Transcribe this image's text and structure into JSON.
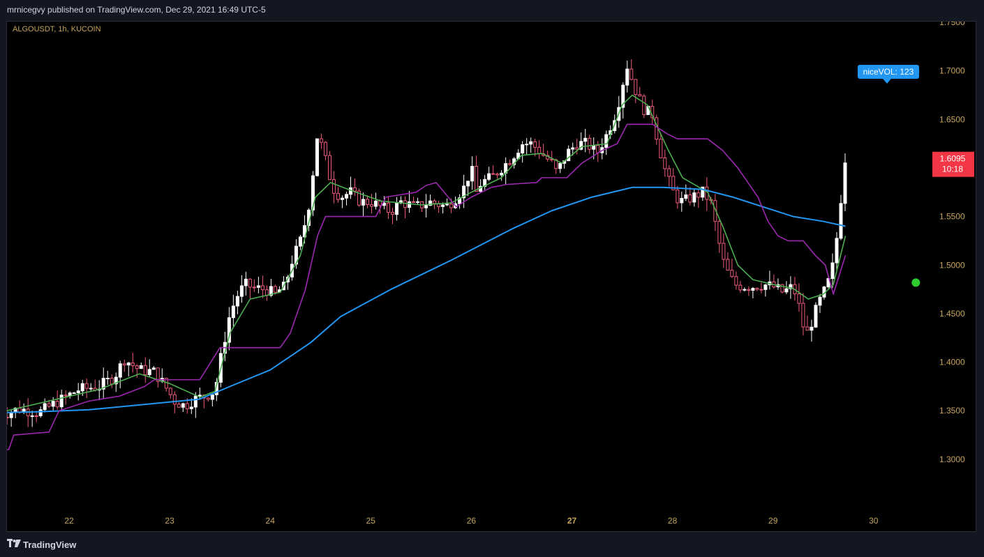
{
  "header": {
    "published": "mrnicegvy published on TradingView.com, Dec 29, 2021 16:49 UTC-5",
    "symbol": "ALGOUSDT, 1h, KUCOIN"
  },
  "footer": {
    "brand": "TradingView"
  },
  "colors": {
    "up": "#ffffff",
    "down": "#ef5b7a",
    "ema_fast": "#4caf50",
    "ema_slow": "#2196f3",
    "trail": "#9c27b0",
    "price_tag": "#f23645",
    "label_bg": "#2196f3",
    "axis_text": "#c8a45a"
  },
  "chart_data": {
    "type": "candlestick",
    "x_axis": {
      "labels": [
        "22",
        "23",
        "24",
        "25",
        "26",
        "27",
        "28",
        "29",
        "30"
      ],
      "bold": "27"
    },
    "y_axis": {
      "range": [
        1.27,
        1.77
      ],
      "ticks": [
        "1.7500",
        "1.7000",
        "1.6500",
        "1.6000",
        "1.5500",
        "1.5000",
        "1.4500",
        "1.4000",
        "1.3500",
        "1.3000"
      ]
    },
    "last_price": {
      "value": "1.6095",
      "countdown": "10:18"
    },
    "indicator_label": "niceVOL: 123",
    "signals": [
      {
        "type": "target",
        "x_day": 30.42,
        "price": 1.699,
        "color": "#ef5350"
      },
      {
        "type": "dot",
        "x_day": 30.42,
        "price": 1.482,
        "color": "#2ecc2e"
      }
    ],
    "price_path": [
      [
        21.3,
        1.345
      ],
      [
        21.5,
        1.352
      ],
      [
        21.7,
        1.348
      ],
      [
        21.9,
        1.36
      ],
      [
        22.1,
        1.372
      ],
      [
        22.3,
        1.375
      ],
      [
        22.45,
        1.385
      ],
      [
        22.55,
        1.403
      ],
      [
        22.7,
        1.392
      ],
      [
        22.85,
        1.39
      ],
      [
        22.95,
        1.376
      ],
      [
        23.05,
        1.36
      ],
      [
        23.15,
        1.355
      ],
      [
        23.25,
        1.362
      ],
      [
        23.35,
        1.365
      ],
      [
        23.45,
        1.37
      ],
      [
        23.5,
        1.4
      ],
      [
        23.55,
        1.425
      ],
      [
        23.6,
        1.45
      ],
      [
        23.68,
        1.47
      ],
      [
        23.75,
        1.48
      ],
      [
        23.85,
        1.476
      ],
      [
        23.95,
        1.475
      ],
      [
        24.05,
        1.47
      ],
      [
        24.1,
        1.475
      ],
      [
        24.15,
        1.478
      ],
      [
        24.2,
        1.5
      ],
      [
        24.3,
        1.525
      ],
      [
        24.35,
        1.545
      ],
      [
        24.4,
        1.57
      ],
      [
        24.43,
        1.6
      ],
      [
        24.47,
        1.635
      ],
      [
        24.52,
        1.62
      ],
      [
        24.57,
        1.6
      ],
      [
        24.62,
        1.58
      ],
      [
        24.7,
        1.57
      ],
      [
        24.8,
        1.575
      ],
      [
        24.9,
        1.565
      ],
      [
        25.0,
        1.565
      ],
      [
        25.1,
        1.56
      ],
      [
        25.2,
        1.555
      ],
      [
        25.3,
        1.565
      ],
      [
        25.45,
        1.56
      ],
      [
        25.6,
        1.565
      ],
      [
        25.75,
        1.56
      ],
      [
        25.85,
        1.57
      ],
      [
        25.93,
        1.58
      ],
      [
        26.0,
        1.6
      ],
      [
        26.05,
        1.575
      ],
      [
        26.1,
        1.585
      ],
      [
        26.2,
        1.59
      ],
      [
        26.3,
        1.6
      ],
      [
        26.4,
        1.61
      ],
      [
        26.5,
        1.625
      ],
      [
        26.6,
        1.625
      ],
      [
        26.7,
        1.615
      ],
      [
        26.8,
        1.605
      ],
      [
        26.85,
        1.595
      ],
      [
        26.95,
        1.615
      ],
      [
        27.05,
        1.625
      ],
      [
        27.15,
        1.625
      ],
      [
        27.25,
        1.615
      ],
      [
        27.35,
        1.635
      ],
      [
        27.45,
        1.66
      ],
      [
        27.5,
        1.685
      ],
      [
        27.55,
        1.705
      ],
      [
        27.6,
        1.69
      ],
      [
        27.65,
        1.675
      ],
      [
        27.72,
        1.66
      ],
      [
        27.8,
        1.655
      ],
      [
        27.86,
        1.625
      ],
      [
        27.92,
        1.6
      ],
      [
        27.97,
        1.585
      ],
      [
        28.03,
        1.57
      ],
      [
        28.1,
        1.565
      ],
      [
        28.2,
        1.57
      ],
      [
        28.3,
        1.575
      ],
      [
        28.38,
        1.565
      ],
      [
        28.45,
        1.53
      ],
      [
        28.5,
        1.505
      ],
      [
        28.56,
        1.49
      ],
      [
        28.62,
        1.48
      ],
      [
        28.7,
        1.478
      ],
      [
        28.8,
        1.478
      ],
      [
        28.9,
        1.48
      ],
      [
        29.0,
        1.478
      ],
      [
        29.1,
        1.472
      ],
      [
        29.2,
        1.478
      ],
      [
        29.28,
        1.45
      ],
      [
        29.32,
        1.425
      ],
      [
        29.38,
        1.44
      ],
      [
        29.45,
        1.46
      ],
      [
        29.52,
        1.475
      ],
      [
        29.58,
        1.49
      ],
      [
        29.63,
        1.525
      ],
      [
        29.67,
        1.56
      ],
      [
        29.7,
        1.61
      ],
      [
        29.72,
        1.6095
      ]
    ],
    "series": [
      {
        "color": "#4caf50",
        "points": [
          [
            21.3,
            1.348
          ],
          [
            22.3,
            1.372
          ],
          [
            22.7,
            1.388
          ],
          [
            23.0,
            1.378
          ],
          [
            23.3,
            1.364
          ],
          [
            23.45,
            1.37
          ],
          [
            23.6,
            1.43
          ],
          [
            23.8,
            1.465
          ],
          [
            24.1,
            1.472
          ],
          [
            24.3,
            1.51
          ],
          [
            24.45,
            1.57
          ],
          [
            24.6,
            1.585
          ],
          [
            24.8,
            1.577
          ],
          [
            25.1,
            1.566
          ],
          [
            25.5,
            1.562
          ],
          [
            25.8,
            1.564
          ],
          [
            26.0,
            1.575
          ],
          [
            26.3,
            1.59
          ],
          [
            26.5,
            1.613
          ],
          [
            26.7,
            1.615
          ],
          [
            26.9,
            1.605
          ],
          [
            27.1,
            1.622
          ],
          [
            27.35,
            1.625
          ],
          [
            27.5,
            1.665
          ],
          [
            27.6,
            1.675
          ],
          [
            27.75,
            1.665
          ],
          [
            27.95,
            1.62
          ],
          [
            28.1,
            1.59
          ],
          [
            28.35,
            1.575
          ],
          [
            28.5,
            1.54
          ],
          [
            28.65,
            1.5
          ],
          [
            28.8,
            1.485
          ],
          [
            29.0,
            1.48
          ],
          [
            29.2,
            1.476
          ],
          [
            29.35,
            1.465
          ],
          [
            29.5,
            1.47
          ],
          [
            29.6,
            1.48
          ],
          [
            29.72,
            1.53
          ]
        ]
      },
      {
        "color": "#2196f3",
        "points": [
          [
            21.3,
            1.348
          ],
          [
            21.7,
            1.349
          ],
          [
            22.2,
            1.351
          ],
          [
            22.7,
            1.356
          ],
          [
            23.3,
            1.362
          ],
          [
            23.6,
            1.375
          ],
          [
            24.0,
            1.392
          ],
          [
            24.4,
            1.42
          ],
          [
            24.7,
            1.447
          ],
          [
            25.2,
            1.475
          ],
          [
            25.8,
            1.505
          ],
          [
            26.4,
            1.537
          ],
          [
            26.8,
            1.556
          ],
          [
            27.2,
            1.57
          ],
          [
            27.6,
            1.58
          ],
          [
            27.9,
            1.58
          ],
          [
            28.3,
            1.578
          ],
          [
            28.6,
            1.57
          ],
          [
            28.9,
            1.56
          ],
          [
            29.2,
            1.55
          ],
          [
            29.5,
            1.545
          ],
          [
            29.72,
            1.54
          ]
        ]
      },
      {
        "color": "#9c27b0",
        "points": [
          [
            21.3,
            1.31
          ],
          [
            21.4,
            1.31
          ],
          [
            21.45,
            1.325
          ],
          [
            21.8,
            1.328
          ],
          [
            21.9,
            1.35
          ],
          [
            22.2,
            1.36
          ],
          [
            22.5,
            1.365
          ],
          [
            22.75,
            1.375
          ],
          [
            22.85,
            1.382
          ],
          [
            23.3,
            1.382
          ],
          [
            23.5,
            1.415
          ],
          [
            24.1,
            1.415
          ],
          [
            24.2,
            1.43
          ],
          [
            24.35,
            1.475
          ],
          [
            24.47,
            1.53
          ],
          [
            24.55,
            1.55
          ],
          [
            25.05,
            1.55
          ],
          [
            25.15,
            1.57
          ],
          [
            25.45,
            1.575
          ],
          [
            25.55,
            1.582
          ],
          [
            25.65,
            1.585
          ],
          [
            25.85,
            1.56
          ],
          [
            26.0,
            1.57
          ],
          [
            26.2,
            1.58
          ],
          [
            26.35,
            1.583
          ],
          [
            26.65,
            1.585
          ],
          [
            26.7,
            1.59
          ],
          [
            26.95,
            1.59
          ],
          [
            27.1,
            1.605
          ],
          [
            27.3,
            1.618
          ],
          [
            27.45,
            1.625
          ],
          [
            27.55,
            1.645
          ],
          [
            27.8,
            1.645
          ],
          [
            27.95,
            1.635
          ],
          [
            28.05,
            1.63
          ],
          [
            28.35,
            1.63
          ],
          [
            28.5,
            1.618
          ],
          [
            28.65,
            1.6
          ],
          [
            28.75,
            1.585
          ],
          [
            28.85,
            1.57
          ],
          [
            28.95,
            1.545
          ],
          [
            29.05,
            1.53
          ],
          [
            29.15,
            1.525
          ],
          [
            29.3,
            1.525
          ],
          [
            29.42,
            1.51
          ],
          [
            29.52,
            1.5
          ],
          [
            29.6,
            1.47
          ],
          [
            29.72,
            1.51
          ]
        ]
      }
    ]
  }
}
